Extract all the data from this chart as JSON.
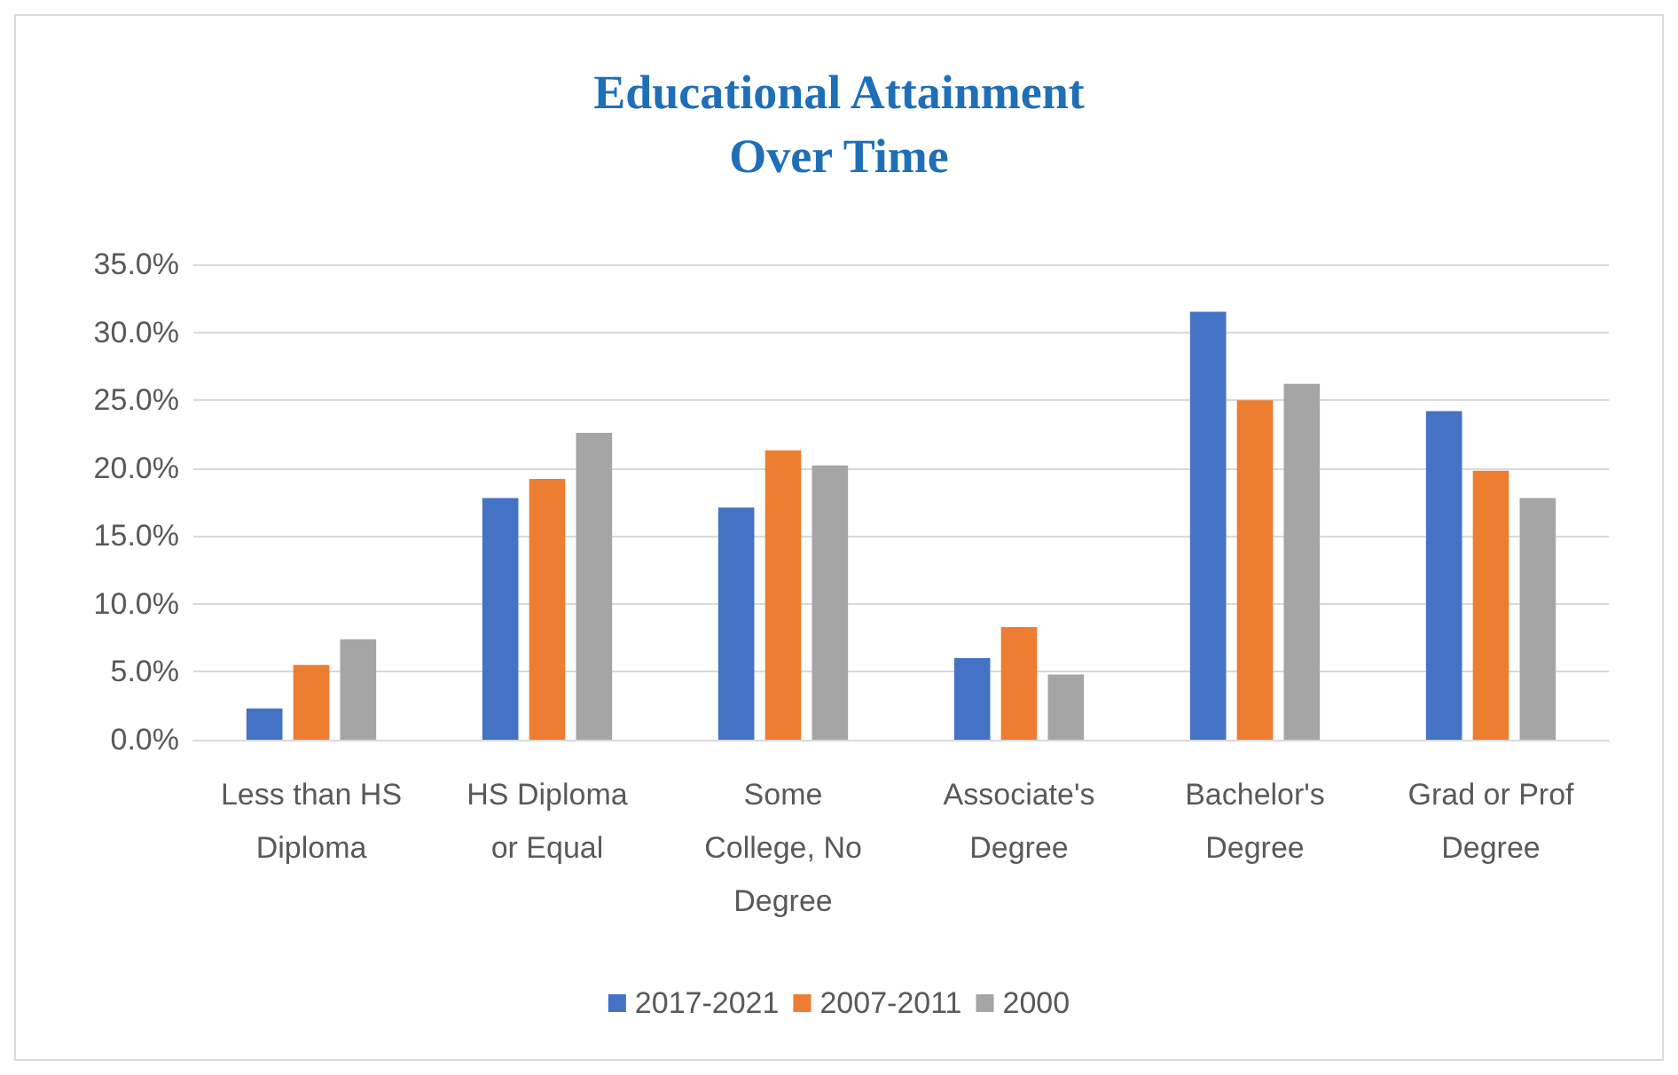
{
  "chart_data": {
    "type": "bar",
    "title": "Educational Attainment\nOver Time",
    "categories": [
      "Less than HS\nDiploma",
      "HS Diploma\nor Equal",
      "Some\nCollege, No\nDegree",
      "Associate's\nDegree",
      "Bachelor's\nDegree",
      "Grad or Prof\nDegree"
    ],
    "series": [
      {
        "name": "2017-2021",
        "color": "#4472c4",
        "values": [
          2.3,
          17.8,
          17.1,
          6.0,
          31.5,
          24.2
        ]
      },
      {
        "name": "2007-2011",
        "color": "#ed7d31",
        "values": [
          5.5,
          19.2,
          21.3,
          8.3,
          25.0,
          19.8
        ]
      },
      {
        "name": "2000",
        "color": "#a5a5a5",
        "values": [
          7.4,
          22.6,
          20.2,
          4.8,
          26.2,
          17.8
        ]
      }
    ],
    "ylim": [
      0,
      35
    ],
    "yticks": [
      {
        "value": 0,
        "label": "0.0%"
      },
      {
        "value": 5,
        "label": "5.0%"
      },
      {
        "value": 10,
        "label": "10.0%"
      },
      {
        "value": 15,
        "label": "15.0%"
      },
      {
        "value": 20,
        "label": "20.0%"
      },
      {
        "value": 25,
        "label": "25.0%"
      },
      {
        "value": 30,
        "label": "30.0%"
      },
      {
        "value": 35,
        "label": "35.0%"
      }
    ],
    "grid": true,
    "legend": "bottom"
  }
}
